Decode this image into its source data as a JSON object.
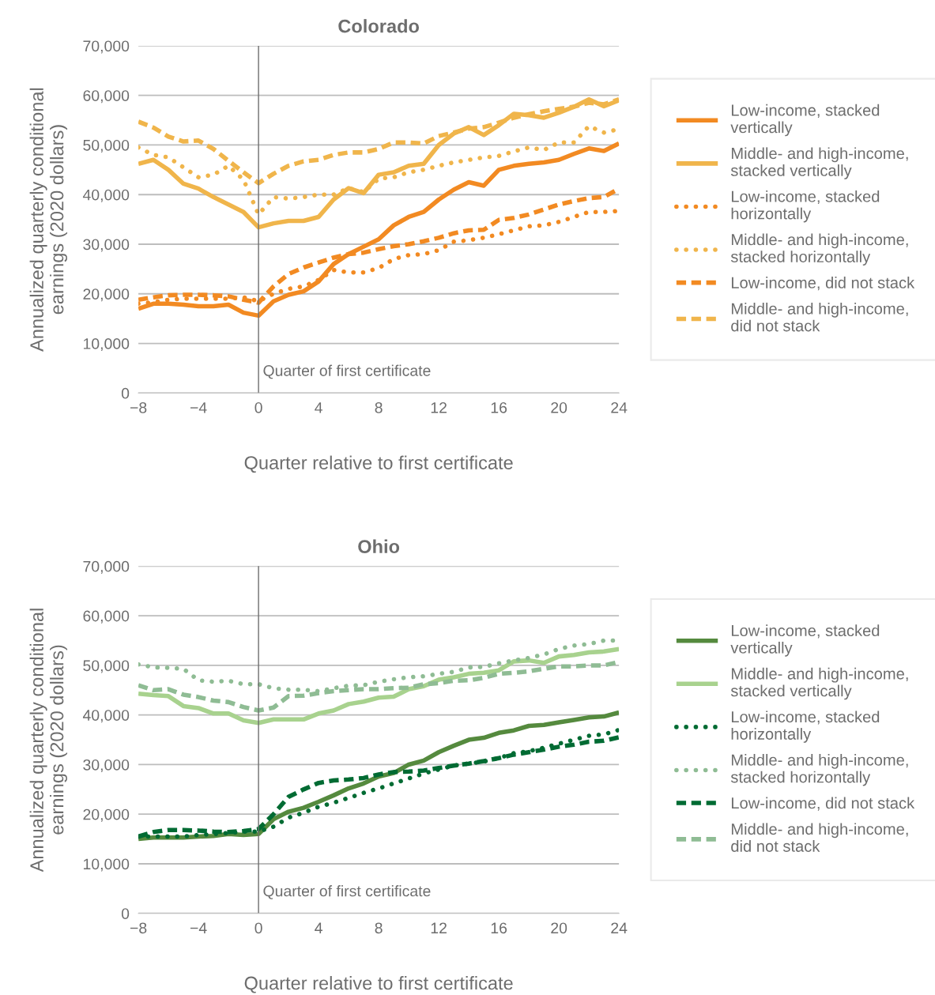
{
  "chart_data": [
    {
      "type": "line",
      "title": "Colorado",
      "xlabel": "Quarter relative to first certificate",
      "ylabel": "Annualized quarterly conditional\nearnings (2020 dollars)",
      "x": [
        -8,
        -7,
        -6,
        -5,
        -4,
        -3,
        -2,
        -1,
        0,
        1,
        2,
        3,
        4,
        5,
        6,
        7,
        8,
        9,
        10,
        11,
        12,
        13,
        14,
        15,
        16,
        17,
        18,
        19,
        20,
        21,
        22,
        23,
        24
      ],
      "xlim": [
        -8,
        24
      ],
      "xticks": [
        -8,
        -4,
        0,
        4,
        8,
        12,
        16,
        20,
        24
      ],
      "ylim": [
        0,
        70000
      ],
      "yticks": [
        0,
        {
          "value": 10000,
          "label": "10,000"
        },
        {
          "value": 20000,
          "label": "20,000"
        },
        {
          "value": 30000,
          "label": "30,000"
        },
        {
          "value": 40000,
          "label": "40,000"
        },
        {
          "value": 50000,
          "label": "50,000"
        },
        {
          "value": 60000,
          "label": "60,000"
        },
        {
          "value": 70000,
          "label": "70,000"
        }
      ],
      "grid": "y",
      "legend": "right",
      "ref_lines": [
        {
          "axis": "x",
          "value": 0,
          "label": "Quarter of first certificate",
          "color": "#6d6d6d"
        }
      ],
      "series": [
        {
          "name": "Low-income, stacked vertically",
          "color": "#f28a22",
          "line_style": "solid",
          "values": [
            17000,
            18000,
            18000,
            17800,
            17500,
            17500,
            17800,
            16200,
            15600,
            18500,
            19800,
            20500,
            22500,
            26000,
            28000,
            29500,
            31000,
            33800,
            35500,
            36500,
            39000,
            41000,
            42500,
            41800,
            45000,
            45800,
            46200,
            46500,
            47000,
            48200,
            49300,
            48800,
            50300
          ]
        },
        {
          "name": "Middle- and high-income, stacked vertically",
          "color": "#f0b54b",
          "line_style": "solid",
          "values": [
            46200,
            47000,
            45000,
            42200,
            41200,
            39500,
            38000,
            36500,
            33400,
            34200,
            34700,
            34700,
            35500,
            39000,
            41300,
            40300,
            44000,
            44500,
            45800,
            46200,
            50000,
            52300,
            53600,
            52000,
            54000,
            56300,
            56000,
            55500,
            56500,
            57700,
            59200,
            57800,
            59000
          ]
        },
        {
          "name": "Low-income, stacked horizontally",
          "color": "#f28a22",
          "line_style": "dotted",
          "values": [
            18000,
            18300,
            18800,
            19000,
            19000,
            19000,
            19000,
            19300,
            18500,
            20000,
            21000,
            21500,
            22800,
            24800,
            24300,
            24300,
            25200,
            27000,
            27800,
            28000,
            28800,
            30500,
            30800,
            31300,
            32000,
            32800,
            33600,
            33800,
            34500,
            35500,
            36500,
            36500,
            36700
          ]
        },
        {
          "name": "Middle- and high-income, stacked horizontally",
          "color": "#f0b54b",
          "line_style": "dotted",
          "values": [
            49500,
            48000,
            47500,
            45500,
            43500,
            44000,
            45800,
            43000,
            36000,
            39500,
            39200,
            39500,
            40000,
            40000,
            41300,
            40500,
            43200,
            43500,
            44500,
            45000,
            45800,
            46500,
            47000,
            47500,
            47800,
            48700,
            49500,
            49000,
            50500,
            50500,
            53800,
            52500,
            53200
          ]
        },
        {
          "name": "Low-income, did not stack",
          "color": "#f28a22",
          "line_style": "dashed",
          "values": [
            18800,
            19300,
            19700,
            19800,
            19800,
            19700,
            19500,
            18800,
            18200,
            21500,
            24000,
            25300,
            26300,
            27300,
            28000,
            28300,
            29000,
            29600,
            30000,
            30600,
            31300,
            32200,
            32800,
            32900,
            34900,
            35300,
            36000,
            37000,
            38000,
            38700,
            39300,
            39500,
            41200
          ]
        },
        {
          "name": "Middle- and high-income, did not stack",
          "color": "#f0b54b",
          "line_style": "dashed",
          "values": [
            54700,
            53500,
            51700,
            50700,
            50900,
            49200,
            46800,
            44500,
            42300,
            44200,
            45800,
            46700,
            47000,
            48000,
            48500,
            48500,
            49200,
            50500,
            50500,
            50300,
            51800,
            52500,
            53300,
            53600,
            54500,
            55500,
            56200,
            56800,
            57300,
            57700,
            58500,
            58200,
            59200
          ]
        }
      ]
    },
    {
      "type": "line",
      "title": "Ohio",
      "xlabel": "Quarter relative to first certificate",
      "ylabel": "Annualized quarterly conditional\nearnings (2020 dollars)",
      "x": [
        -8,
        -7,
        -6,
        -5,
        -4,
        -3,
        -2,
        -1,
        0,
        1,
        2,
        3,
        4,
        5,
        6,
        7,
        8,
        9,
        10,
        11,
        12,
        13,
        14,
        15,
        16,
        17,
        18,
        19,
        20,
        21,
        22,
        23,
        24
      ],
      "xlim": [
        -8,
        24
      ],
      "xticks": [
        -8,
        -4,
        0,
        4,
        8,
        12,
        16,
        20,
        24
      ],
      "ylim": [
        0,
        70000
      ],
      "yticks": [
        0,
        {
          "value": 10000,
          "label": "10,000"
        },
        {
          "value": 20000,
          "label": "20,000"
        },
        {
          "value": 30000,
          "label": "30,000"
        },
        {
          "value": 40000,
          "label": "40,000"
        },
        {
          "value": 50000,
          "label": "50,000"
        },
        {
          "value": 60000,
          "label": "60,000"
        },
        {
          "value": 70000,
          "label": "70,000"
        }
      ],
      "grid": "y",
      "legend": "right",
      "ref_lines": [
        {
          "axis": "x",
          "value": 0,
          "label": "Quarter of first certificate",
          "color": "#6d6d6d"
        }
      ],
      "series": [
        {
          "name": "Low-income, stacked vertically",
          "color": "#558a3e",
          "line_style": "solid",
          "values": [
            15000,
            15300,
            15300,
            15300,
            15500,
            15600,
            16000,
            15800,
            16000,
            19000,
            20500,
            21300,
            22500,
            23800,
            25200,
            26200,
            27600,
            28300,
            30000,
            30800,
            32500,
            33800,
            35000,
            35400,
            36400,
            36900,
            37800,
            38000,
            38500,
            39000,
            39500,
            39700,
            40500
          ]
        },
        {
          "name": "Middle- and high-income, stacked vertically",
          "color": "#a8d28e",
          "line_style": "solid",
          "values": [
            44300,
            44000,
            43800,
            41800,
            41400,
            40300,
            40300,
            38900,
            38400,
            39100,
            39100,
            39100,
            40300,
            40900,
            42200,
            42700,
            43500,
            43700,
            45200,
            45800,
            47100,
            47600,
            48300,
            48500,
            49000,
            50800,
            51000,
            50500,
            51800,
            52100,
            52600,
            52800,
            53300
          ]
        },
        {
          "name": "Low-income, stacked horizontally",
          "color": "#006b33",
          "line_style": "dotted",
          "values": [
            15500,
            15500,
            15500,
            15500,
            15800,
            16000,
            16200,
            16500,
            16500,
            17500,
            19300,
            20300,
            21500,
            22300,
            23300,
            24300,
            25200,
            26200,
            27200,
            28200,
            29000,
            29800,
            30200,
            30600,
            31300,
            32300,
            32700,
            33400,
            34200,
            35000,
            35800,
            36100,
            37000
          ]
        },
        {
          "name": "Middle- and high-income, stacked horizontally",
          "color": "#8fbc94",
          "line_style": "dotted",
          "values": [
            50200,
            49600,
            49500,
            49300,
            47000,
            46700,
            46900,
            46200,
            46200,
            45400,
            45100,
            45100,
            44800,
            45400,
            45900,
            46000,
            46700,
            47200,
            47600,
            47800,
            48300,
            48700,
            49600,
            49700,
            50400,
            51000,
            51500,
            52200,
            53300,
            54000,
            54300,
            55000,
            55000
          ]
        },
        {
          "name": "Low-income, did not stack",
          "color": "#006b33",
          "line_style": "dashed",
          "values": [
            15500,
            16400,
            16800,
            16800,
            16700,
            16500,
            16400,
            16600,
            17000,
            20000,
            23500,
            25000,
            26300,
            26800,
            27000,
            27300,
            28000,
            28500,
            28600,
            28800,
            29300,
            29800,
            30200,
            30700,
            31300,
            32000,
            32500,
            33000,
            33600,
            34000,
            34600,
            34800,
            35500
          ]
        },
        {
          "name": "Middle- and high-income, did not stack",
          "color": "#8fbc94",
          "line_style": "dashed",
          "values": [
            46000,
            45000,
            45200,
            44100,
            43600,
            42900,
            42600,
            41600,
            40900,
            41500,
            43800,
            43900,
            44400,
            44800,
            45000,
            45200,
            45200,
            45400,
            45500,
            46200,
            46400,
            46900,
            47000,
            47500,
            48300,
            48500,
            48800,
            49300,
            49800,
            49800,
            50000,
            50000,
            50700
          ]
        }
      ]
    }
  ]
}
